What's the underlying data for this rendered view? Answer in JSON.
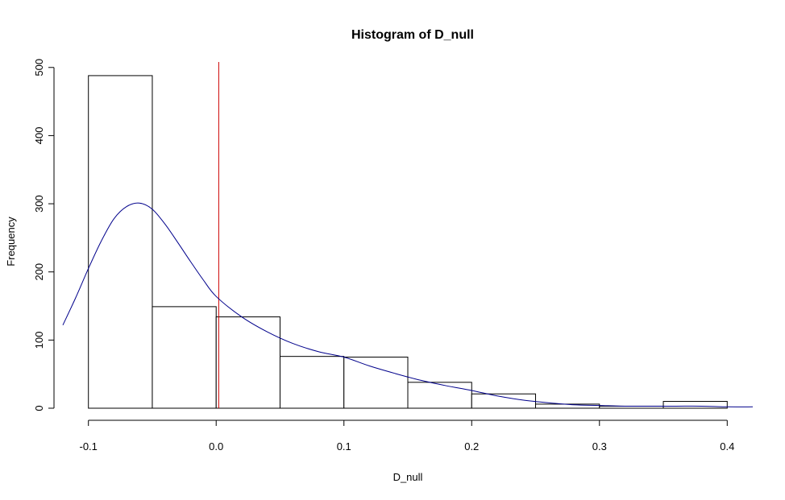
{
  "chart_data": {
    "type": "bar",
    "title": "Histogram of D_null",
    "xlabel": "D_null",
    "ylabel": "Frequency",
    "bins": [
      {
        "from": -0.1,
        "to": -0.05,
        "count": 488
      },
      {
        "from": -0.05,
        "to": 0.0,
        "count": 149
      },
      {
        "from": 0.0,
        "to": 0.05,
        "count": 134
      },
      {
        "from": 0.05,
        "to": 0.1,
        "count": 76
      },
      {
        "from": 0.1,
        "to": 0.15,
        "count": 75
      },
      {
        "from": 0.15,
        "to": 0.2,
        "count": 38
      },
      {
        "from": 0.2,
        "to": 0.25,
        "count": 21
      },
      {
        "from": 0.25,
        "to": 0.3,
        "count": 6
      },
      {
        "from": 0.3,
        "to": 0.35,
        "count": 3
      },
      {
        "from": 0.35,
        "to": 0.4,
        "count": 10
      }
    ],
    "xlim": [
      -0.12,
      0.42
    ],
    "ylim": [
      0,
      508
    ],
    "x_ticks": [
      -0.1,
      0.0,
      0.1,
      0.2,
      0.3,
      0.4
    ],
    "x_tick_labels": [
      "-0.1",
      "0.0",
      "0.1",
      "0.2",
      "0.3",
      "0.4"
    ],
    "y_ticks": [
      0,
      100,
      200,
      300,
      400,
      500
    ],
    "y_tick_labels": [
      "0",
      "100",
      "200",
      "300",
      "400",
      "500"
    ],
    "density_curve": {
      "color": "#00008b",
      "x": [
        -0.12,
        -0.11,
        -0.1,
        -0.09,
        -0.08,
        -0.07,
        -0.06,
        -0.05,
        -0.04,
        -0.03,
        -0.02,
        -0.01,
        0.0,
        0.02,
        0.04,
        0.06,
        0.08,
        0.1,
        0.12,
        0.14,
        0.16,
        0.18,
        0.2,
        0.22,
        0.24,
        0.26,
        0.28,
        0.3,
        0.32,
        0.34,
        0.36,
        0.38,
        0.4,
        0.42
      ],
      "y": [
        122,
        162,
        205,
        245,
        278,
        296,
        301,
        292,
        270,
        243,
        215,
        188,
        164,
        134,
        112,
        95,
        83,
        75,
        62,
        51,
        41,
        33,
        26,
        18,
        12,
        8,
        5,
        4,
        3,
        3,
        3,
        3,
        2,
        2
      ]
    },
    "reference_line": {
      "x": 0.002,
      "color": "#cc0000"
    },
    "grid": false,
    "legend": "none",
    "bar_fill": "#ffffff",
    "bar_stroke": "#000000"
  }
}
